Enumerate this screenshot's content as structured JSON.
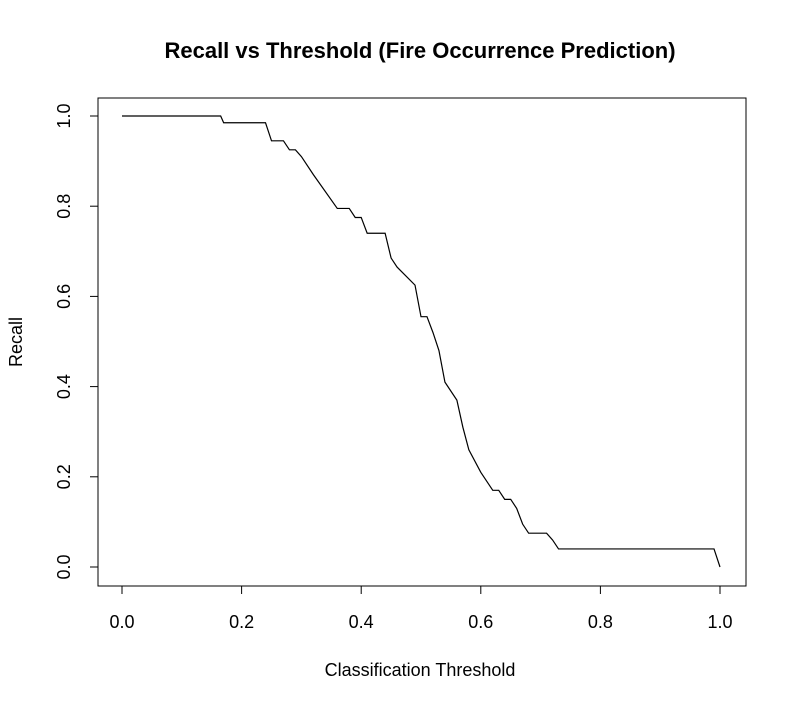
{
  "chart_data": {
    "type": "line",
    "title": "Recall vs Threshold (Fire Occurrence Prediction)",
    "xlabel": "Classification Threshold",
    "ylabel": "Recall",
    "xlim": [
      0,
      1
    ],
    "ylim": [
      0,
      1
    ],
    "x_ticks": [
      "0.0",
      "0.2",
      "0.4",
      "0.6",
      "0.8",
      "1.0"
    ],
    "y_ticks": [
      "0.0",
      "0.2",
      "0.4",
      "0.6",
      "0.8",
      "1.0"
    ],
    "grid": false,
    "line_color": "#000000",
    "series": [
      {
        "x": [
          0.0,
          0.165,
          0.17,
          0.24,
          0.25,
          0.27,
          0.28,
          0.29,
          0.3,
          0.32,
          0.36,
          0.38,
          0.39,
          0.4,
          0.41,
          0.42,
          0.44,
          0.45,
          0.46,
          0.49,
          0.5,
          0.51,
          0.52,
          0.53,
          0.54,
          0.56,
          0.57,
          0.58,
          0.6,
          0.62,
          0.63,
          0.64,
          0.65,
          0.66,
          0.67,
          0.68,
          0.7,
          0.71,
          0.72,
          0.73,
          0.99,
          1.0
        ],
        "y": [
          1.0,
          1.0,
          0.985,
          0.985,
          0.945,
          0.945,
          0.925,
          0.925,
          0.91,
          0.87,
          0.795,
          0.795,
          0.775,
          0.775,
          0.74,
          0.74,
          0.74,
          0.685,
          0.665,
          0.625,
          0.555,
          0.555,
          0.52,
          0.48,
          0.41,
          0.37,
          0.31,
          0.26,
          0.21,
          0.17,
          0.17,
          0.15,
          0.15,
          0.13,
          0.095,
          0.075,
          0.075,
          0.075,
          0.06,
          0.04,
          0.04,
          0.0
        ]
      }
    ]
  }
}
